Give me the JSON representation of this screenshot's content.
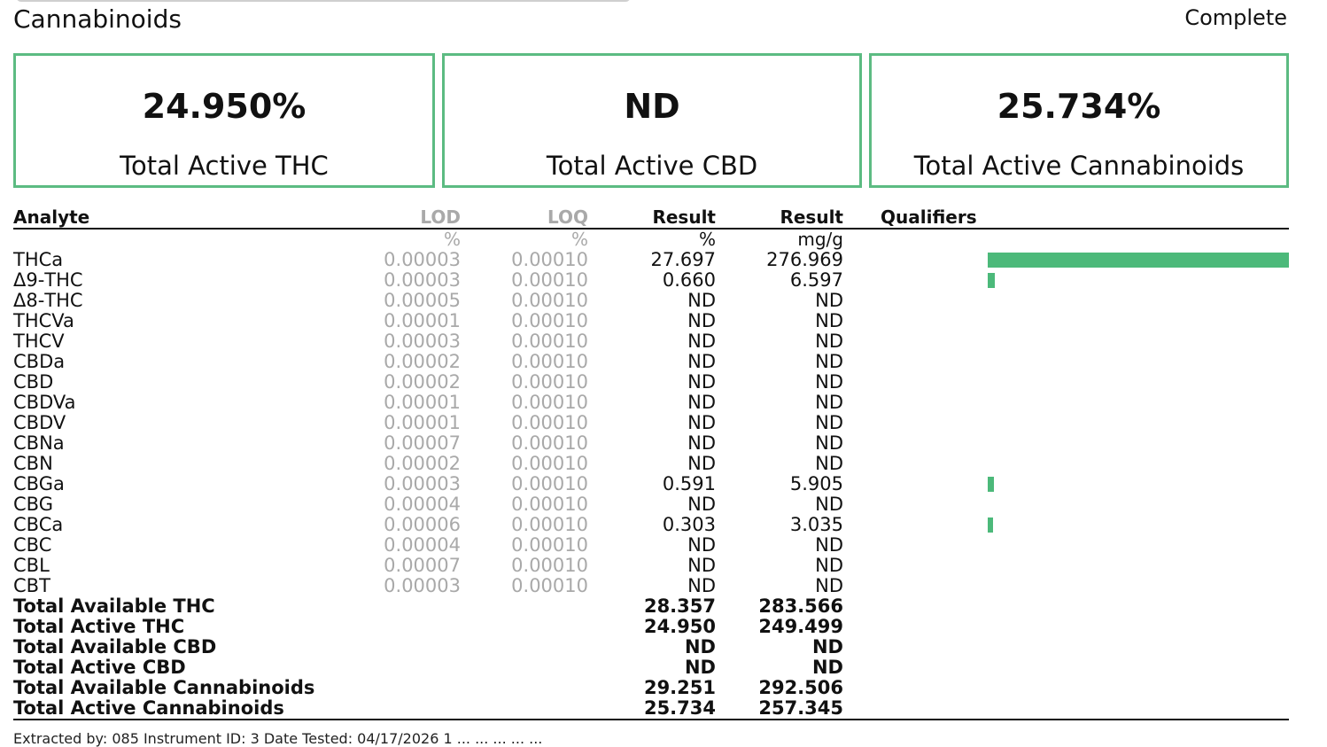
{
  "section": {
    "title": "Cannabinoids",
    "status": "Complete"
  },
  "summary": [
    {
      "value": "24.950%",
      "label": "Total Active THC"
    },
    {
      "value": "ND",
      "label": "Total Active CBD"
    },
    {
      "value": "25.734%",
      "label": "Total Active Cannabinoids"
    }
  ],
  "table": {
    "headers": {
      "analyte": "Analyte",
      "lod": "LOD",
      "loq": "LOQ",
      "result_pct": "Result",
      "result_mg": "Result",
      "qualifiers": "Qualifiers"
    },
    "units": {
      "lod": "%",
      "loq": "%",
      "result_pct": "%",
      "result_mg": "mg/g"
    },
    "accent_color": "#4cb97a",
    "rows": [
      {
        "analyte": "THCa",
        "lod": "0.00003",
        "loq": "0.00010",
        "pct": "27.697",
        "mg": "276.969",
        "level": 1.0
      },
      {
        "analyte": "Δ9-THC",
        "lod": "0.00003",
        "loq": "0.00010",
        "pct": "0.660",
        "mg": "6.597",
        "level": 0.024
      },
      {
        "analyte": "Δ8-THC",
        "lod": "0.00005",
        "loq": "0.00010",
        "pct": "ND",
        "mg": "ND",
        "level": 0
      },
      {
        "analyte": "THCVa",
        "lod": "0.00001",
        "loq": "0.00010",
        "pct": "ND",
        "mg": "ND",
        "level": 0
      },
      {
        "analyte": "THCV",
        "lod": "0.00003",
        "loq": "0.00010",
        "pct": "ND",
        "mg": "ND",
        "level": 0
      },
      {
        "analyte": "CBDa",
        "lod": "0.00002",
        "loq": "0.00010",
        "pct": "ND",
        "mg": "ND",
        "level": 0
      },
      {
        "analyte": "CBD",
        "lod": "0.00002",
        "loq": "0.00010",
        "pct": "ND",
        "mg": "ND",
        "level": 0
      },
      {
        "analyte": "CBDVa",
        "lod": "0.00001",
        "loq": "0.00010",
        "pct": "ND",
        "mg": "ND",
        "level": 0
      },
      {
        "analyte": "CBDV",
        "lod": "0.00001",
        "loq": "0.00010",
        "pct": "ND",
        "mg": "ND",
        "level": 0
      },
      {
        "analyte": "CBNa",
        "lod": "0.00007",
        "loq": "0.00010",
        "pct": "ND",
        "mg": "ND",
        "level": 0
      },
      {
        "analyte": "CBN",
        "lod": "0.00002",
        "loq": "0.00010",
        "pct": "ND",
        "mg": "ND",
        "level": 0
      },
      {
        "analyte": "CBGa",
        "lod": "0.00003",
        "loq": "0.00010",
        "pct": "0.591",
        "mg": "5.905",
        "level": 0.021
      },
      {
        "analyte": "CBG",
        "lod": "0.00004",
        "loq": "0.00010",
        "pct": "ND",
        "mg": "ND",
        "level": 0
      },
      {
        "analyte": "CBCa",
        "lod": "0.00006",
        "loq": "0.00010",
        "pct": "0.303",
        "mg": "3.035",
        "level": 0.011
      },
      {
        "analyte": "CBC",
        "lod": "0.00004",
        "loq": "0.00010",
        "pct": "ND",
        "mg": "ND",
        "level": 0
      },
      {
        "analyte": "CBL",
        "lod": "0.00007",
        "loq": "0.00010",
        "pct": "ND",
        "mg": "ND",
        "level": 0
      },
      {
        "analyte": "CBT",
        "lod": "0.00003",
        "loq": "0.00010",
        "pct": "ND",
        "mg": "ND",
        "level": 0
      }
    ],
    "totals": [
      {
        "analyte": "Total Available THC",
        "pct": "28.357",
        "mg": "283.566"
      },
      {
        "analyte": "Total Active THC",
        "pct": "24.950",
        "mg": "249.499"
      },
      {
        "analyte": "Total Available CBD",
        "pct": "ND",
        "mg": "ND"
      },
      {
        "analyte": "Total Active CBD",
        "pct": "ND",
        "mg": "ND"
      },
      {
        "analyte": "Total Available Cannabinoids",
        "pct": "29.251",
        "mg": "292.506"
      },
      {
        "analyte": "Total Active Cannabinoids",
        "pct": "25.734",
        "mg": "257.345"
      }
    ]
  },
  "footer_fragment": "Extracted by: 085 Instrument ID: 3 Date Tested: 04/17/2026 1 ... ... ... ... ..."
}
